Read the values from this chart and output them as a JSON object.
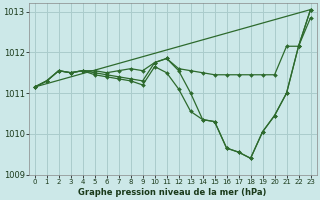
{
  "title": "Graphe pression niveau de la mer (hPa)",
  "background_color": "#cce8e8",
  "grid_color": "#aacccc",
  "line_color": "#2d6a2d",
  "xlim": [
    -0.5,
    23.5
  ],
  "ylim": [
    1009,
    1013.2
  ],
  "yticks": [
    1009,
    1010,
    1011,
    1012,
    1013
  ],
  "xticks": [
    0,
    1,
    2,
    3,
    4,
    5,
    6,
    7,
    8,
    9,
    10,
    11,
    12,
    13,
    14,
    15,
    16,
    17,
    18,
    19,
    20,
    21,
    22,
    23
  ],
  "lines": [
    {
      "x": [
        0,
        23
      ],
      "y": [
        1011.15,
        1013.05
      ]
    },
    {
      "x": [
        0,
        1,
        2,
        3,
        4,
        5,
        6,
        7,
        8,
        9,
        10,
        11,
        12,
        13,
        14,
        15,
        16,
        17,
        18,
        19,
        20,
        21,
        22,
        23
      ],
      "y": [
        1011.15,
        1011.3,
        1011.55,
        1011.5,
        1011.55,
        1011.55,
        1011.5,
        1011.55,
        1011.6,
        1011.55,
        1011.75,
        1011.85,
        1011.6,
        1011.55,
        1011.5,
        1011.45,
        1011.45,
        1011.45,
        1011.45,
        1011.45,
        1011.45,
        1012.15,
        1012.15,
        1012.85
      ]
    },
    {
      "x": [
        0,
        1,
        2,
        3,
        4,
        5,
        6,
        7,
        8,
        9,
        10,
        11,
        12,
        13,
        14,
        15,
        16,
        17,
        18,
        19,
        20,
        21,
        22,
        23
      ],
      "y": [
        1011.15,
        1011.3,
        1011.55,
        1011.5,
        1011.55,
        1011.5,
        1011.45,
        1011.4,
        1011.35,
        1011.3,
        1011.75,
        1011.85,
        1011.55,
        1011.0,
        1010.35,
        1010.3,
        1009.65,
        1009.55,
        1009.4,
        1010.05,
        1010.45,
        1011.0,
        1012.15,
        1013.05
      ]
    },
    {
      "x": [
        0,
        1,
        2,
        3,
        4,
        5,
        6,
        7,
        8,
        9,
        10,
        11,
        12,
        13,
        14,
        15,
        16,
        17,
        18,
        19,
        20,
        21,
        22,
        23
      ],
      "y": [
        1011.15,
        1011.3,
        1011.55,
        1011.5,
        1011.55,
        1011.45,
        1011.4,
        1011.35,
        1011.3,
        1011.2,
        1011.65,
        1011.5,
        1011.1,
        1010.55,
        1010.35,
        1010.3,
        1009.65,
        1009.55,
        1009.4,
        1010.05,
        1010.45,
        1011.0,
        1012.15,
        1013.05
      ]
    }
  ]
}
